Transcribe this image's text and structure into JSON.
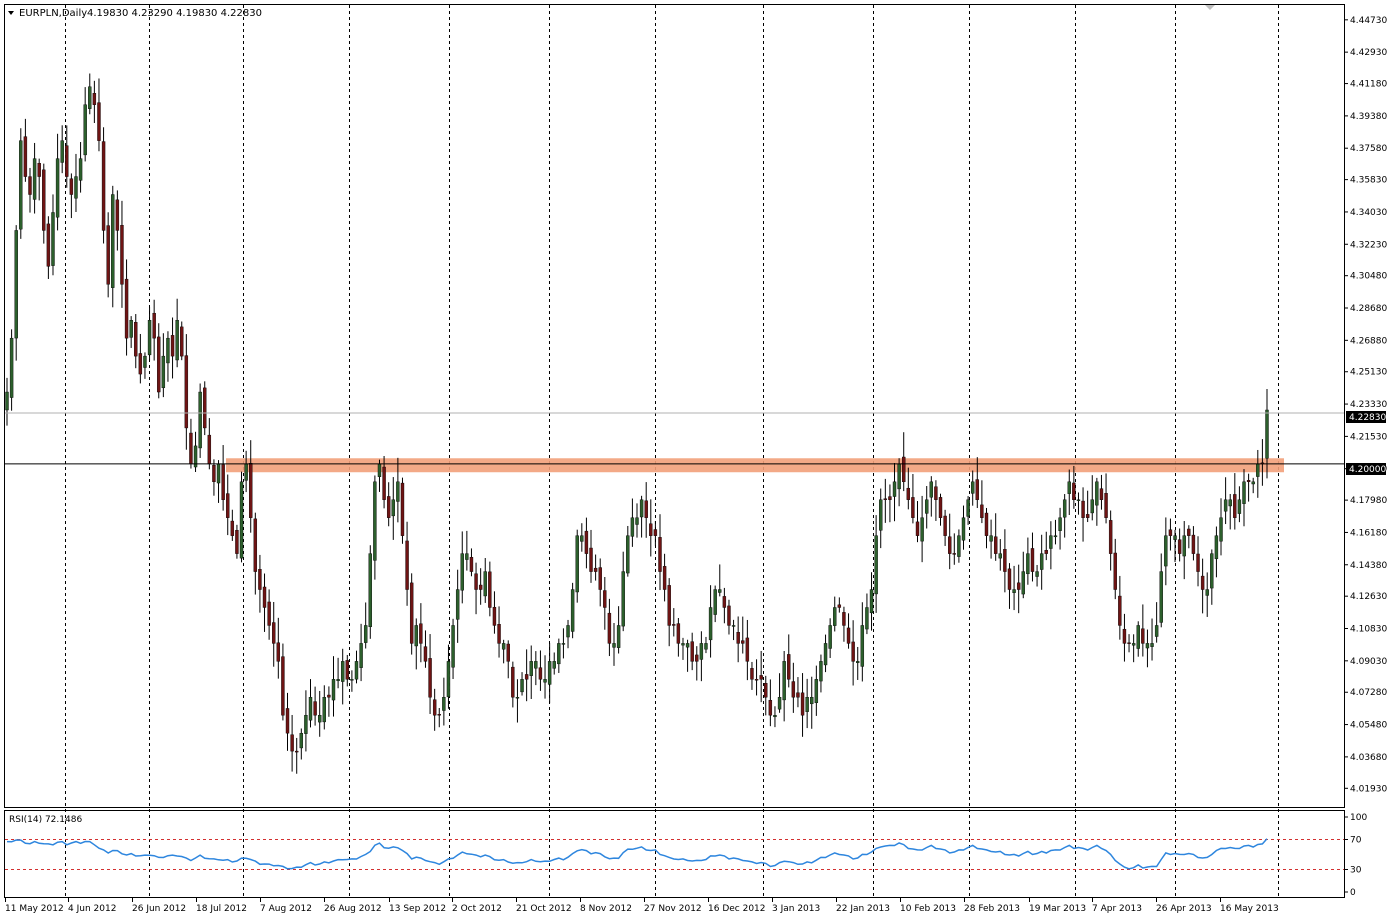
{
  "header": {
    "symbol": "EURPLN,Daily",
    "ohlc": "4.19830 4.23290 4.19830 4.22830"
  },
  "indicator": {
    "label": "RSI(14) 72.1486",
    "levels": [
      70,
      30
    ],
    "scale_labels": [
      "100",
      "70",
      "30",
      "0"
    ]
  },
  "colors": {
    "bull": "#2c5f2c",
    "bear": "#6e1414",
    "wick": "#000000",
    "resistance_zone": "#f2a07a",
    "rsi_line": "#2e86de",
    "rsi_level": "#d33030",
    "price_marker_bg": "#000000",
    "price_marker_fg": "#ffffff"
  },
  "chart_data": {
    "type": "candlestick",
    "symbol": "EURPLN",
    "timeframe": "Daily",
    "ylim": [
      4.01,
      4.455
    ],
    "y_ticks": [
      "4.44730",
      "4.42930",
      "4.41180",
      "4.39380",
      "4.37580",
      "4.35830",
      "4.34030",
      "4.32230",
      "4.30480",
      "4.28680",
      "4.26880",
      "4.25130",
      "4.23330",
      "4.21530",
      "4.19730",
      "4.17980",
      "4.16180",
      "4.14380",
      "4.12630",
      "4.10830",
      "4.09030",
      "4.07280",
      "4.05480",
      "4.03680",
      "4.01930"
    ],
    "x_labels": [
      "11 May 2012",
      "4 Jun 2012",
      "26 Jun 2012",
      "18 Jul 2012",
      "7 Aug 2012",
      "26 Aug 2012",
      "13 Sep 2012",
      "2 Oct 2012",
      "21 Oct 2012",
      "8 Nov 2012",
      "27 Nov 2012",
      "16 Dec 2012",
      "3 Jan 2013",
      "22 Jan 2013",
      "10 Feb 2013",
      "28 Feb 2013",
      "19 Mar 2013",
      "7 Apr 2013",
      "26 Apr 2013",
      "16 May 2013"
    ],
    "horizontal_line": 4.2,
    "horizontal_line_label": "4.20000",
    "last_price": 4.2283,
    "last_price_label": "4.22830",
    "resistance_zone": [
      4.197,
      4.202
    ],
    "close_series": [
      4.24,
      4.27,
      4.33,
      4.38,
      4.36,
      4.35,
      4.37,
      4.36,
      4.33,
      4.31,
      4.34,
      4.37,
      4.38,
      4.36,
      4.35,
      4.36,
      4.37,
      4.4,
      4.41,
      4.4,
      4.38,
      4.33,
      4.3,
      4.35,
      4.33,
      4.3,
      4.27,
      4.28,
      4.26,
      4.25,
      4.26,
      4.28,
      4.27,
      4.24,
      4.26,
      4.27,
      4.26,
      4.28,
      4.26,
      4.22,
      4.2,
      4.21,
      4.24,
      4.22,
      4.2,
      4.19,
      4.2,
      4.18,
      4.17,
      4.16,
      4.15,
      4.19,
      4.2,
      4.17,
      4.14,
      4.13,
      4.12,
      4.11,
      4.1,
      4.09,
      4.06,
      4.05,
      4.04,
      4.04,
      4.05,
      4.06,
      4.07,
      4.06,
      4.06,
      4.07,
      4.07,
      4.08,
      4.08,
      4.09,
      4.08,
      4.08,
      4.09,
      4.1,
      4.11,
      4.15,
      4.19,
      4.2,
      4.18,
      4.17,
      4.18,
      4.19,
      4.16,
      4.13,
      4.1,
      4.11,
      4.1,
      4.09,
      4.07,
      4.06,
      4.06,
      4.07,
      4.09,
      4.11,
      4.13,
      4.15,
      4.15,
      4.14,
      4.13,
      4.13,
      4.14,
      4.12,
      4.11,
      4.1,
      4.1,
      4.09,
      4.07,
      4.07,
      4.08,
      4.08,
      4.09,
      4.09,
      4.08,
      4.08,
      4.09,
      4.09,
      4.1,
      4.1,
      4.11,
      4.13,
      4.16,
      4.16,
      4.15,
      4.14,
      4.14,
      4.13,
      4.12,
      4.1,
      4.1,
      4.11,
      4.14,
      4.16,
      4.17,
      4.17,
      4.18,
      4.17,
      4.16,
      4.16,
      4.14,
      4.13,
      4.11,
      4.11,
      4.1,
      4.1,
      4.1,
      4.09,
      4.09,
      4.1,
      4.1,
      4.12,
      4.13,
      4.13,
      4.12,
      4.11,
      4.11,
      4.1,
      4.1,
      4.09,
      4.08,
      4.08,
      4.08,
      4.07,
      4.06,
      4.06,
      4.07,
      4.09,
      4.08,
      4.07,
      4.07,
      4.06,
      4.07,
      4.07,
      4.08,
      4.09,
      4.1,
      4.11,
      4.12,
      4.12,
      4.11,
      4.1,
      4.09,
      4.09,
      4.11,
      4.12,
      4.13,
      4.16,
      4.18,
      4.18,
      4.18,
      4.19,
      4.2,
      4.19,
      4.18,
      4.17,
      4.16,
      4.17,
      4.18,
      4.19,
      4.18,
      4.17,
      4.16,
      4.15,
      4.15,
      4.16,
      4.17,
      4.18,
      4.19,
      4.18,
      4.17,
      4.16,
      4.16,
      4.15,
      4.15,
      4.14,
      4.13,
      4.13,
      4.13,
      4.14,
      4.15,
      4.14,
      4.14,
      4.15,
      4.15,
      4.16,
      4.16,
      4.17,
      4.18,
      4.19,
      4.18,
      4.18,
      4.17,
      4.17,
      4.18,
      4.19,
      4.18,
      4.17,
      4.15,
      4.13,
      4.11,
      4.1,
      4.1,
      4.1,
      4.11,
      4.1,
      4.1,
      4.1,
      4.11,
      4.14,
      4.16,
      4.16,
      4.16,
      4.15,
      4.16,
      4.16,
      4.15,
      4.14,
      4.13,
      4.13,
      4.15,
      4.16,
      4.17,
      4.18,
      4.18,
      4.17,
      4.18,
      4.19,
      4.19,
      4.19,
      4.2,
      4.2,
      4.23
    ],
    "rsi_series": [
      66,
      68,
      69,
      68,
      66,
      64,
      66,
      66,
      64,
      63,
      64,
      66,
      66,
      64,
      65,
      66,
      66,
      67,
      66,
      64,
      58,
      55,
      53,
      55,
      54,
      52,
      49,
      50,
      49,
      48,
      48,
      50,
      48,
      45,
      47,
      48,
      48,
      49,
      47,
      44,
      43,
      45,
      48,
      46,
      44,
      43,
      44,
      42,
      42,
      41,
      41,
      44,
      46,
      43,
      40,
      38,
      37,
      36,
      36,
      35,
      33,
      32,
      31,
      32,
      34,
      36,
      38,
      37,
      37,
      39,
      40,
      41,
      42,
      44,
      43,
      43,
      45,
      47,
      49,
      55,
      62,
      64,
      60,
      58,
      59,
      60,
      55,
      50,
      45,
      46,
      44,
      43,
      40,
      38,
      38,
      40,
      43,
      46,
      49,
      52,
      52,
      50,
      48,
      48,
      49,
      46,
      44,
      42,
      42,
      41,
      38,
      38,
      40,
      40,
      42,
      42,
      40,
      40,
      42,
      43,
      44,
      44,
      46,
      50,
      56,
      56,
      54,
      52,
      52,
      50,
      48,
      44,
      44,
      46,
      52,
      56,
      58,
      58,
      59,
      57,
      55,
      55,
      51,
      48,
      45,
      45,
      43,
      43,
      43,
      41,
      41,
      43,
      43,
      47,
      49,
      49,
      47,
      45,
      45,
      43,
      43,
      41,
      39,
      39,
      39,
      37,
      35,
      35,
      38,
      42,
      40,
      38,
      38,
      37,
      39,
      40,
      42,
      45,
      47,
      49,
      51,
      51,
      49,
      47,
      45,
      45,
      49,
      51,
      53,
      57,
      61,
      61,
      61,
      63,
      65,
      62,
      59,
      57,
      55,
      57,
      59,
      61,
      59,
      57,
      55,
      53,
      53,
      55,
      57,
      59,
      61,
      59,
      57,
      55,
      55,
      53,
      53,
      51,
      49,
      49,
      49,
      51,
      53,
      51,
      51,
      53,
      53,
      55,
      55,
      57,
      59,
      61,
      59,
      59,
      57,
      57,
      59,
      61,
      59,
      55,
      49,
      43,
      37,
      32,
      32,
      32,
      35,
      33,
      33,
      33,
      35,
      43,
      51,
      51,
      51,
      49,
      51,
      51,
      49,
      47,
      45,
      45,
      51,
      55,
      57,
      59,
      59,
      57,
      59,
      61,
      61,
      61,
      63,
      63,
      72
    ]
  }
}
